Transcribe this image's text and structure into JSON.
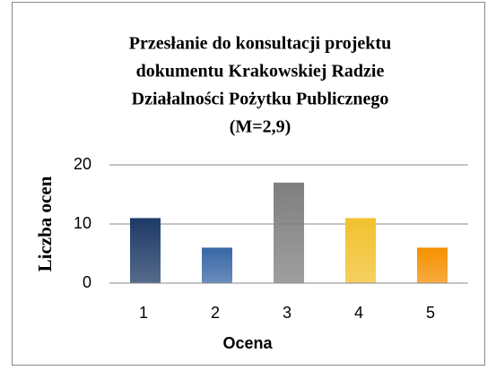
{
  "chart_data": {
    "type": "bar",
    "title": [
      "Przesłanie do konsultacji projektu",
      "dokumentu Krakowskiej Radzie",
      "Działalności Pożytku Publicznego",
      "(M=2,9)"
    ],
    "categories": [
      "1",
      "2",
      "3",
      "4",
      "5"
    ],
    "values": [
      11,
      6,
      17,
      11,
      6
    ],
    "colors": [
      "#1d3a66",
      "#3867a6",
      "#7f7f7f",
      "#f2c12e",
      "#f59000"
    ],
    "xlabel": "Ocena",
    "ylabel": "Liczba ocen",
    "ylim": [
      0,
      20
    ],
    "yticks": [
      0,
      10,
      20
    ],
    "grid": true
  }
}
